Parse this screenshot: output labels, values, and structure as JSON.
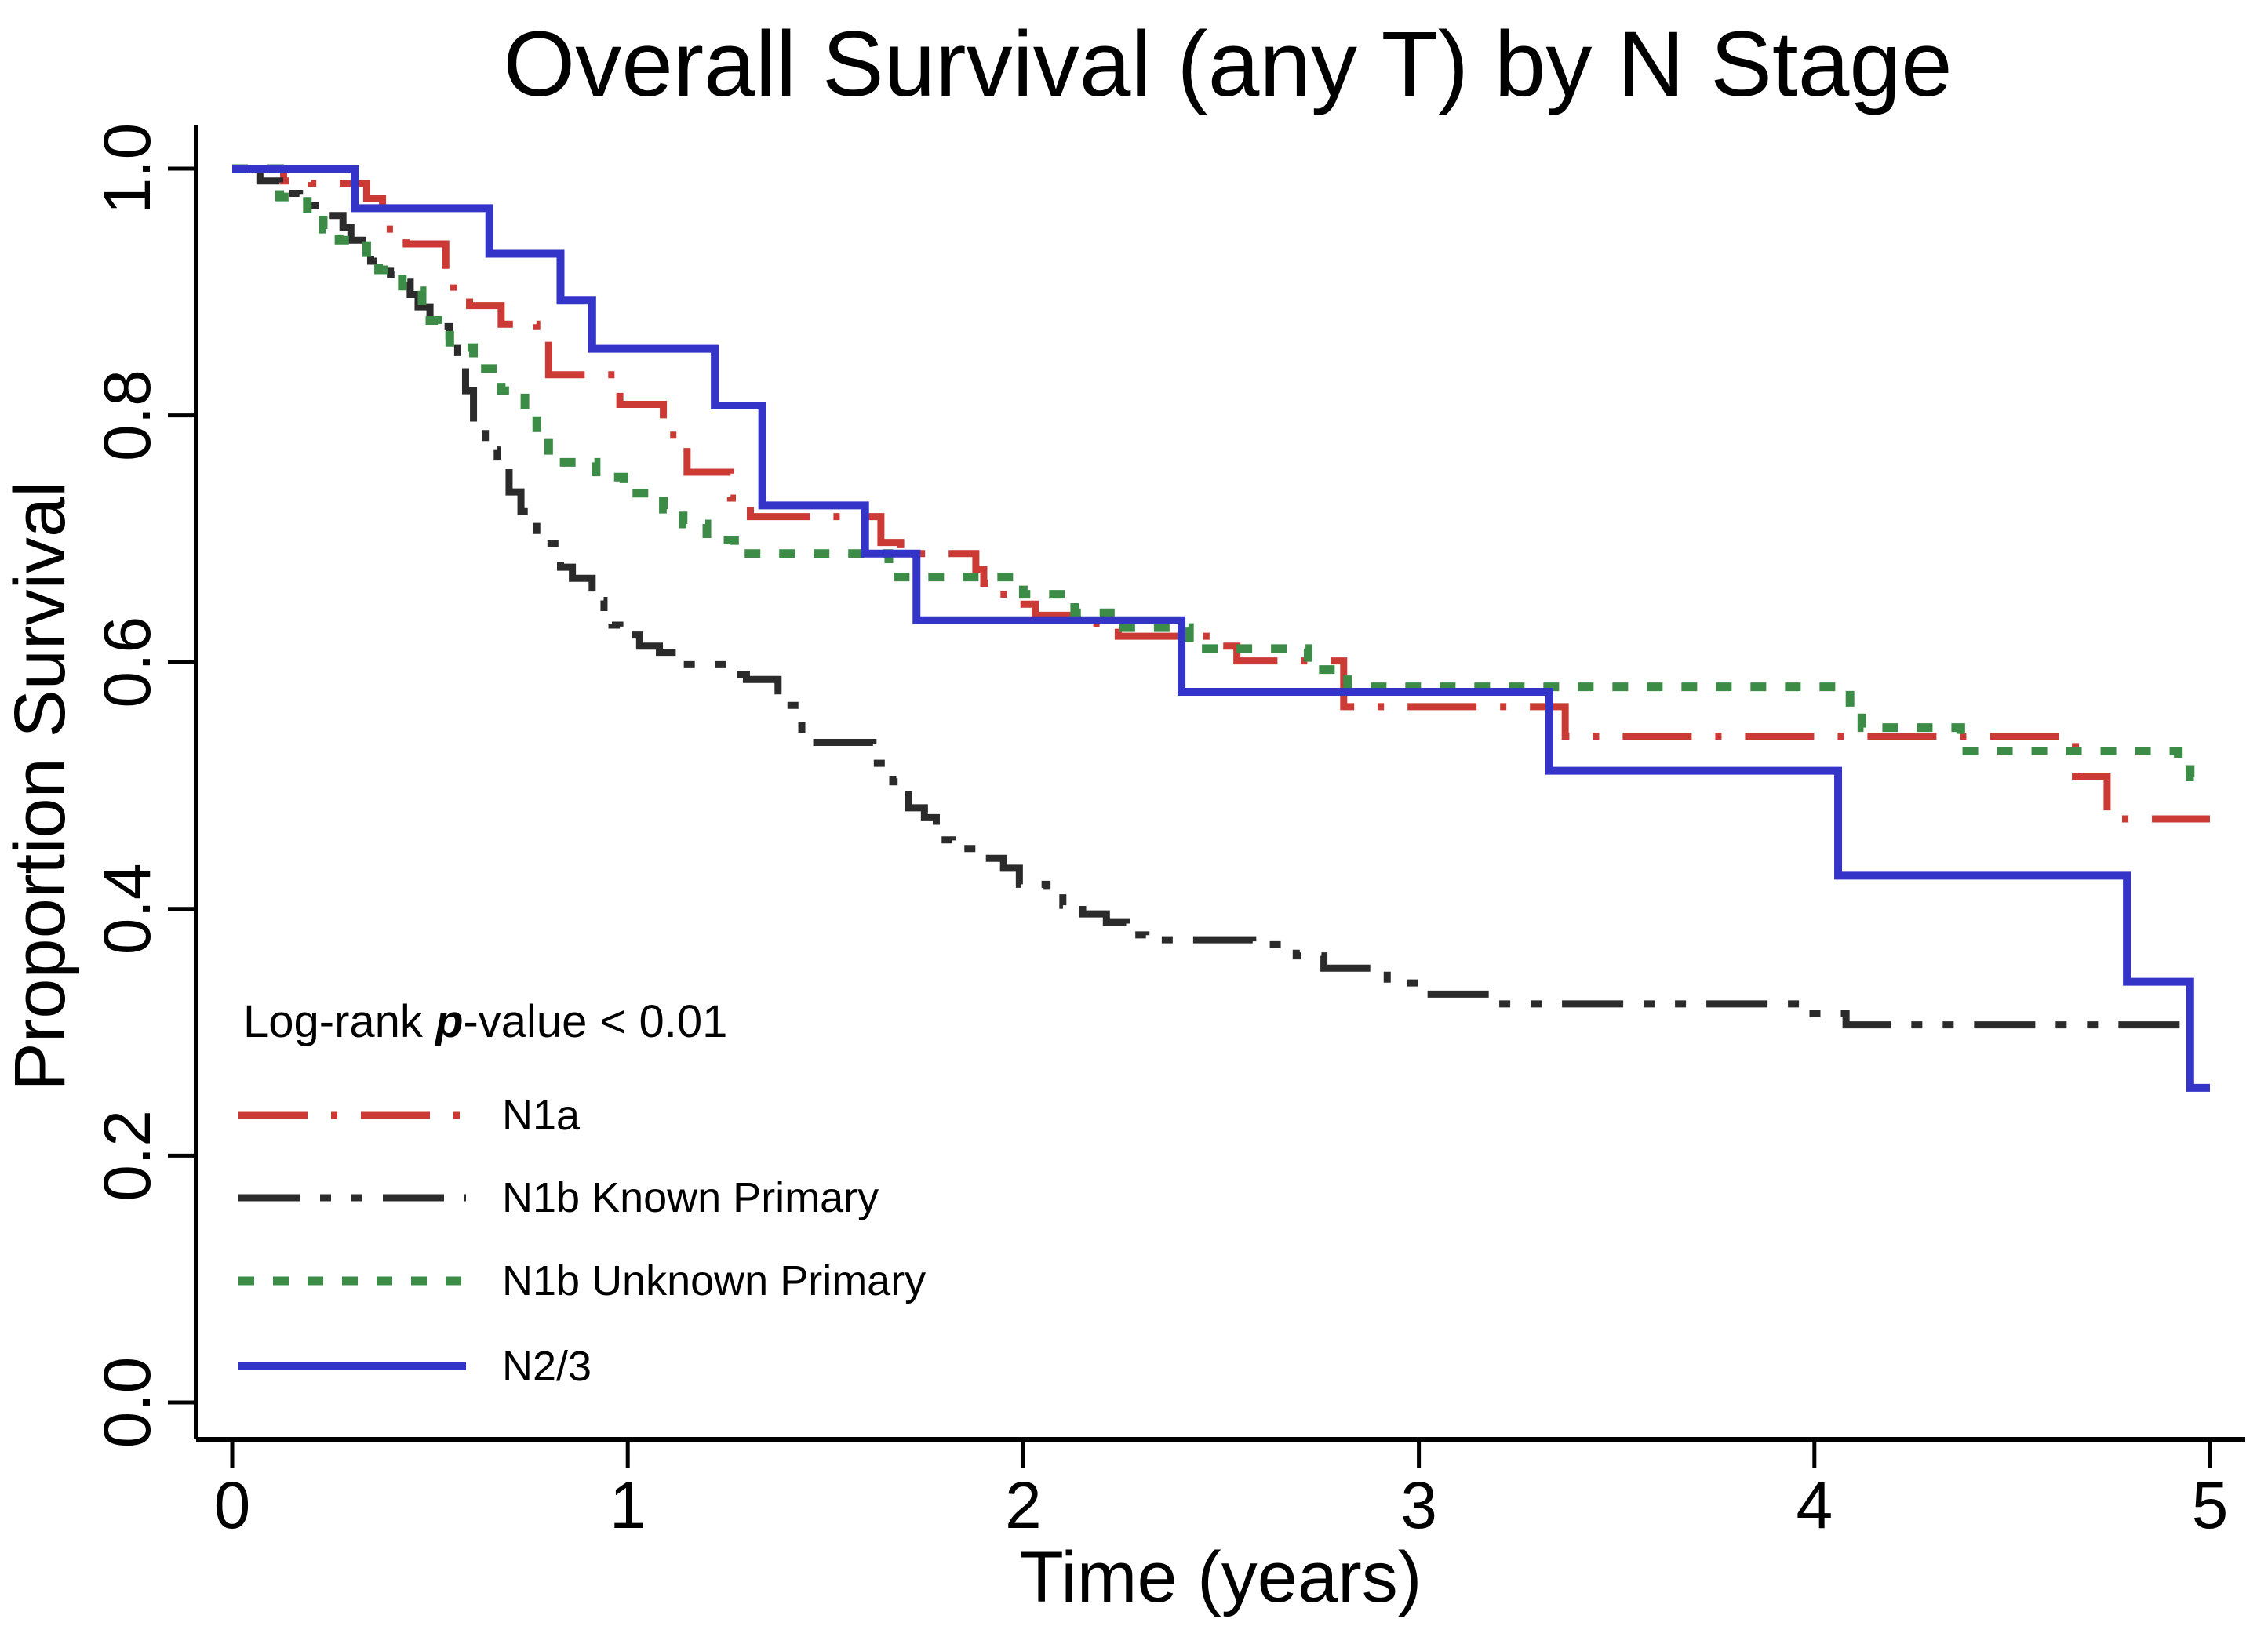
{
  "chart_data": {
    "type": "line",
    "subtype": "kaplan-meier-step",
    "title": "Overall Survival (any T) by N Stage",
    "xlabel": "Time (years)",
    "ylabel": "Proportion Survival",
    "xlim": [
      0,
      5
    ],
    "ylim": [
      0.0,
      1.0
    ],
    "grid": false,
    "legend_position": "inside-bottom-left",
    "xticks": [
      0,
      1,
      2,
      3,
      4,
      5
    ],
    "xtick_labels": [
      "0",
      "1",
      "2",
      "3",
      "4",
      "5"
    ],
    "yticks": [
      0.0,
      0.2,
      0.4,
      0.6,
      0.8,
      1.0
    ],
    "ytick_labels": [
      "0.0",
      "0.2",
      "0.4",
      "0.6",
      "0.8",
      "1.0"
    ],
    "legend_note": {
      "prefix": "Log-rank ",
      "p": "p",
      "suffix": "-value < 0.01"
    },
    "series": [
      {
        "name": "N1a",
        "color": "#cb3a35",
        "dash": [
          88,
          30,
          8,
          30
        ],
        "width": 9,
        "end": 5.0,
        "points": [
          [
            0,
            1.0
          ],
          [
            0.13,
            0.99
          ],
          [
            0.2,
            0.988
          ],
          [
            0.34,
            0.976
          ],
          [
            0.38,
            0.951
          ],
          [
            0.44,
            0.939
          ],
          [
            0.54,
            0.917
          ],
          [
            0.56,
            0.9
          ],
          [
            0.6,
            0.889
          ],
          [
            0.68,
            0.874
          ],
          [
            0.77,
            0.862
          ],
          [
            0.8,
            0.833
          ],
          [
            0.98,
            0.809
          ],
          [
            1.09,
            0.784
          ],
          [
            1.15,
            0.754
          ],
          [
            1.26,
            0.733
          ],
          [
            1.31,
            0.718
          ],
          [
            1.64,
            0.697
          ],
          [
            1.69,
            0.688
          ],
          [
            1.88,
            0.675
          ],
          [
            1.9,
            0.664
          ],
          [
            1.92,
            0.655
          ],
          [
            1.97,
            0.647
          ],
          [
            2.03,
            0.638
          ],
          [
            2.15,
            0.631
          ],
          [
            2.24,
            0.621
          ],
          [
            2.5,
            0.613
          ],
          [
            2.54,
            0.601
          ],
          [
            2.81,
            0.564
          ],
          [
            3.37,
            0.54
          ],
          [
            4.66,
            0.507
          ],
          [
            4.74,
            0.473
          ]
        ]
      },
      {
        "name": "N1b Known Primary",
        "color": "#2b2b2b",
        "dash": [
          78,
          26,
          14,
          26,
          14,
          26
        ],
        "width": 9,
        "end": 4.97,
        "points": [
          [
            0,
            1.0
          ],
          [
            0.07,
            0.99
          ],
          [
            0.12,
            0.98
          ],
          [
            0.17,
            0.97
          ],
          [
            0.22,
            0.962
          ],
          [
            0.28,
            0.952
          ],
          [
            0.3,
            0.942
          ],
          [
            0.33,
            0.936
          ],
          [
            0.35,
            0.925
          ],
          [
            0.38,
            0.92
          ],
          [
            0.4,
            0.914
          ],
          [
            0.43,
            0.908
          ],
          [
            0.45,
            0.898
          ],
          [
            0.47,
            0.888
          ],
          [
            0.5,
            0.879
          ],
          [
            0.53,
            0.872
          ],
          [
            0.55,
            0.862
          ],
          [
            0.57,
            0.851
          ],
          [
            0.59,
            0.82
          ],
          [
            0.61,
            0.795
          ],
          [
            0.64,
            0.772
          ],
          [
            0.67,
            0.759
          ],
          [
            0.7,
            0.738
          ],
          [
            0.73,
            0.722
          ],
          [
            0.75,
            0.71
          ],
          [
            0.77,
            0.696
          ],
          [
            0.83,
            0.677
          ],
          [
            0.86,
            0.668
          ],
          [
            0.91,
            0.65
          ],
          [
            0.94,
            0.639
          ],
          [
            0.96,
            0.63
          ],
          [
            0.98,
            0.622
          ],
          [
            1.03,
            0.613
          ],
          [
            1.08,
            0.608
          ],
          [
            1.13,
            0.598
          ],
          [
            1.27,
            0.59
          ],
          [
            1.3,
            0.586
          ],
          [
            1.38,
            0.565
          ],
          [
            1.44,
            0.535
          ],
          [
            1.62,
            0.518
          ],
          [
            1.67,
            0.503
          ],
          [
            1.71,
            0.482
          ],
          [
            1.75,
            0.474
          ],
          [
            1.78,
            0.456
          ],
          [
            1.82,
            0.449
          ],
          [
            1.89,
            0.441
          ],
          [
            1.95,
            0.433
          ],
          [
            1.99,
            0.42
          ],
          [
            2.06,
            0.414
          ],
          [
            2.1,
            0.403
          ],
          [
            2.15,
            0.396
          ],
          [
            2.21,
            0.389
          ],
          [
            2.26,
            0.379
          ],
          [
            2.31,
            0.375
          ],
          [
            2.58,
            0.371
          ],
          [
            2.69,
            0.362
          ],
          [
            2.76,
            0.352
          ],
          [
            2.92,
            0.34
          ],
          [
            3.01,
            0.331
          ],
          [
            3.2,
            0.323
          ],
          [
            3.97,
            0.315
          ],
          [
            4.08,
            0.306
          ]
        ]
      },
      {
        "name": "N1b Unknown Primary",
        "color": "#3c8c48",
        "dash": [
          20,
          24
        ],
        "width": 11,
        "end": 5.0,
        "points": [
          [
            0,
            1.0
          ],
          [
            0.12,
            0.977
          ],
          [
            0.19,
            0.964
          ],
          [
            0.23,
            0.951
          ],
          [
            0.27,
            0.942
          ],
          [
            0.34,
            0.927
          ],
          [
            0.37,
            0.918
          ],
          [
            0.43,
            0.901
          ],
          [
            0.48,
            0.877
          ],
          [
            0.52,
            0.865
          ],
          [
            0.55,
            0.855
          ],
          [
            0.61,
            0.838
          ],
          [
            0.68,
            0.82
          ],
          [
            0.74,
            0.801
          ],
          [
            0.77,
            0.783
          ],
          [
            0.8,
            0.762
          ],
          [
            0.92,
            0.75
          ],
          [
            0.99,
            0.737
          ],
          [
            1.09,
            0.724
          ],
          [
            1.14,
            0.712
          ],
          [
            1.2,
            0.699
          ],
          [
            1.27,
            0.688
          ],
          [
            1.66,
            0.669
          ],
          [
            2.0,
            0.655
          ],
          [
            2.13,
            0.64
          ],
          [
            2.22,
            0.628
          ],
          [
            2.42,
            0.611
          ],
          [
            2.72,
            0.594
          ],
          [
            2.82,
            0.58
          ],
          [
            4.09,
            0.564
          ],
          [
            4.12,
            0.547
          ],
          [
            4.37,
            0.528
          ],
          [
            4.92,
            0.513
          ],
          [
            4.95,
            0.507
          ]
        ]
      },
      {
        "name": "N2/3",
        "color": "#3434c8",
        "dash": [],
        "width": 10,
        "end": 5.0,
        "points": [
          [
            0,
            1.0
          ],
          [
            0.31,
            0.968
          ],
          [
            0.65,
            0.931
          ],
          [
            0.83,
            0.893
          ],
          [
            0.91,
            0.854
          ],
          [
            1.22,
            0.808
          ],
          [
            1.34,
            0.727
          ],
          [
            1.6,
            0.688
          ],
          [
            1.73,
            0.634
          ],
          [
            2.4,
            0.576
          ],
          [
            3.33,
            0.512
          ],
          [
            4.06,
            0.427
          ],
          [
            4.79,
            0.341
          ],
          [
            4.95,
            0.255
          ]
        ]
      }
    ]
  }
}
